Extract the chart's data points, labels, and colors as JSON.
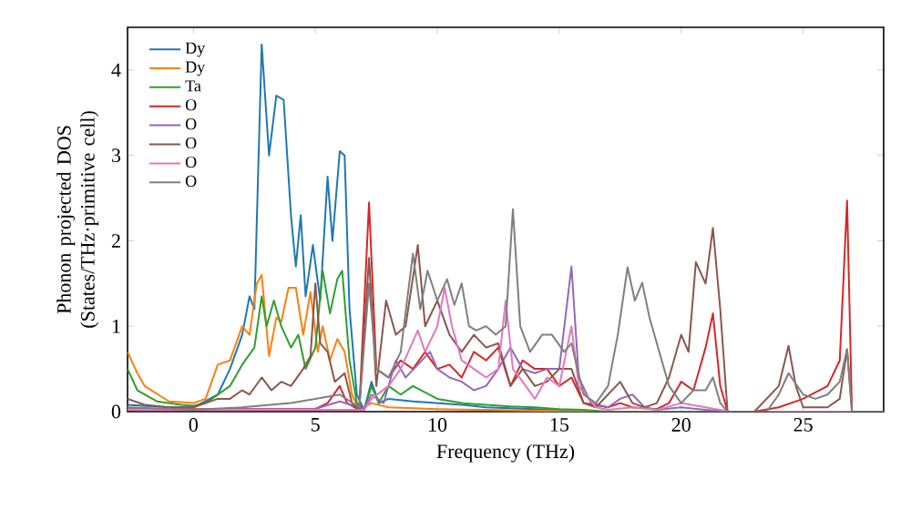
{
  "chart_data": {
    "type": "line",
    "xlabel": "Frequency (THz)",
    "ylabel": "Phonon projected DOS (States/THz·primitive cell)",
    "xlim": [
      -2.7,
      28.3
    ],
    "ylim": [
      0,
      4.5
    ],
    "xticks": [
      0,
      5,
      10,
      15,
      20,
      25
    ],
    "yticks": [
      0,
      1,
      2,
      3,
      4
    ],
    "legend": "top left",
    "series": [
      {
        "name": "Dy",
        "color": "#1f77b4",
        "x": [
          -2.7,
          -1,
          0,
          1,
          1.5,
          2,
          2.3,
          2.5,
          2.8,
          3.1,
          3.4,
          3.7,
          4.0,
          4.2,
          4.4,
          4.6,
          4.9,
          5.2,
          5.5,
          5.7,
          6.0,
          6.2,
          6.4,
          6.7,
          7.0,
          7.3,
          7.6,
          8,
          9,
          10,
          11,
          12,
          13,
          14,
          15,
          16,
          28.3
        ],
        "values": [
          0.08,
          0.05,
          0.05,
          0.2,
          0.5,
          0.9,
          1.35,
          1.2,
          4.3,
          3.0,
          3.7,
          3.65,
          2.3,
          1.7,
          2.3,
          1.35,
          1.95,
          1.3,
          2.75,
          2.0,
          3.05,
          3.0,
          1.2,
          0.2,
          0.02,
          0.35,
          0.1,
          0.15,
          0.12,
          0.1,
          0.08,
          0.05,
          0.04,
          0.03,
          0.02,
          0,
          0
        ]
      },
      {
        "name": "Dy",
        "color": "#ff7f0e",
        "x": [
          -2.7,
          -2.3,
          -2,
          -1,
          0,
          0.5,
          1,
          1.5,
          2,
          2.3,
          2.6,
          2.8,
          3.1,
          3.4,
          3.6,
          3.9,
          4.2,
          4.5,
          4.8,
          5.1,
          5.3,
          5.6,
          5.9,
          6.2,
          6.5,
          6.8,
          7.3,
          8,
          10,
          12,
          14,
          16,
          28.3
        ],
        "values": [
          0.7,
          0.45,
          0.3,
          0.12,
          0.1,
          0.15,
          0.55,
          0.6,
          1.0,
          0.9,
          1.5,
          1.6,
          0.65,
          1.1,
          1.05,
          1.45,
          1.45,
          0.9,
          1.4,
          0.7,
          1.0,
          0.6,
          0.85,
          0.7,
          0.2,
          0.02,
          0.1,
          0.05,
          0.03,
          0.02,
          0.01,
          0,
          0
        ]
      },
      {
        "name": "Ta",
        "color": "#2ca02c",
        "x": [
          -2.7,
          -2.3,
          -1.5,
          -0.5,
          0,
          0.5,
          1,
          1.5,
          2,
          2.5,
          2.8,
          3.0,
          3.3,
          3.6,
          4.0,
          4.3,
          4.6,
          5.0,
          5.3,
          5.6,
          5.9,
          6.1,
          6.4,
          6.7,
          7.0,
          7.3,
          7.6,
          8,
          8.5,
          9,
          10,
          11,
          12,
          13,
          14,
          15,
          16,
          17,
          28.3
        ],
        "values": [
          0.5,
          0.25,
          0.12,
          0.08,
          0.07,
          0.1,
          0.2,
          0.3,
          0.55,
          0.75,
          1.35,
          1.0,
          1.3,
          1.0,
          0.75,
          0.9,
          0.5,
          0.75,
          1.65,
          1.15,
          1.55,
          1.65,
          0.6,
          0.1,
          0.02,
          0.3,
          0.1,
          0.3,
          0.2,
          0.3,
          0.15,
          0.1,
          0.08,
          0.06,
          0.05,
          0.03,
          0.02,
          0,
          0
        ]
      },
      {
        "name": "O",
        "color": "#d62728",
        "x": [
          -2.7,
          5,
          5.5,
          6,
          6.3,
          6.8,
          7.2,
          7.5,
          8,
          8.5,
          9,
          9.5,
          10,
          10.5,
          11,
          11.5,
          12,
          12.5,
          13,
          13.5,
          14,
          14.5,
          15,
          15.5,
          16,
          17,
          17.5,
          18,
          19,
          19.5,
          20,
          20.5,
          21,
          21.3,
          21.6,
          21.9,
          23,
          24,
          25,
          26,
          26.5,
          26.8,
          27.0,
          28.3
        ],
        "values": [
          0.03,
          0.03,
          0.1,
          0.3,
          0.1,
          0.02,
          2.45,
          0.5,
          0.4,
          0.6,
          0.5,
          0.7,
          0.5,
          0.55,
          0.4,
          0.7,
          0.6,
          0.75,
          0.3,
          0.6,
          0.5,
          0.5,
          0.3,
          0.4,
          0.1,
          0.05,
          0.1,
          0.05,
          0.03,
          0.1,
          0.35,
          0.25,
          0.75,
          1.15,
          0.3,
          0,
          0,
          0.05,
          0.15,
          0.3,
          0.6,
          2.47,
          0,
          0
        ]
      },
      {
        "name": "O",
        "color": "#9467bd",
        "x": [
          -2.7,
          5,
          6,
          7,
          7.3,
          7.8,
          8.3,
          8.7,
          9.2,
          9.7,
          10,
          10.5,
          11,
          11.5,
          12,
          12.5,
          13,
          13.5,
          14,
          14.5,
          15,
          15.5,
          15.8,
          16.3,
          17,
          17.5,
          18,
          18.5,
          19,
          20,
          21,
          22,
          28.3
        ],
        "values": [
          0.02,
          0.03,
          0.12,
          0.03,
          0.2,
          0.1,
          0.6,
          0.4,
          0.55,
          0.7,
          0.5,
          0.4,
          0.35,
          0.25,
          0.3,
          0.5,
          0.75,
          0.5,
          0.45,
          0.5,
          0.5,
          1.7,
          0.4,
          0.1,
          0.05,
          0.15,
          0.2,
          0.05,
          0.02,
          0.05,
          0.02,
          0,
          0
        ]
      },
      {
        "name": "O",
        "color": "#8c564b",
        "x": [
          -2.7,
          -2,
          -1,
          0,
          0.5,
          1,
          1.5,
          2,
          2.3,
          2.8,
          3.2,
          3.6,
          4,
          4.5,
          4.8,
          5,
          5.2,
          5.5,
          5.8,
          6.2,
          6.5,
          6.8,
          7.2,
          7.5,
          7.9,
          8.3,
          8.7,
          9.2,
          9.5,
          10,
          10.5,
          11,
          11.5,
          12,
          12.5,
          13,
          13.5,
          14,
          14.5,
          15,
          15.5,
          16,
          16.5,
          17,
          17.5,
          18,
          18.5,
          19,
          19.5,
          20,
          20.3,
          20.6,
          21,
          21.3,
          21.6,
          21.9,
          23,
          24,
          24.4,
          24.7,
          25,
          26,
          26.5,
          26.8,
          27.0,
          28.3
        ],
        "values": [
          0.15,
          0.08,
          0.05,
          0.05,
          0.1,
          0.15,
          0.15,
          0.25,
          0.2,
          0.4,
          0.25,
          0.35,
          0.3,
          0.5,
          0.65,
          1.5,
          0.8,
          0.7,
          0.35,
          0.45,
          0.1,
          0.02,
          1.8,
          0.3,
          1.3,
          0.9,
          1.0,
          1.95,
          1.0,
          1.3,
          0.9,
          0.7,
          0.9,
          0.75,
          0.8,
          0.3,
          0.5,
          0.3,
          0.35,
          0.5,
          0.5,
          0.1,
          0.05,
          0.2,
          0.35,
          0.1,
          0.05,
          0.1,
          0.4,
          0.9,
          0.7,
          1.75,
          1.5,
          2.15,
          1.2,
          0,
          0,
          0.3,
          0.77,
          0.3,
          0.05,
          0.05,
          0.15,
          0.73,
          0,
          0
        ]
      },
      {
        "name": "O",
        "color": "#e377c2",
        "x": [
          -2.7,
          7,
          7.3,
          8,
          8.5,
          9.2,
          9.5,
          10,
          10.3,
          10.6,
          11,
          11.5,
          12,
          12.5,
          12.8,
          13.1,
          13.5,
          14,
          14.5,
          15,
          15.5,
          15.8,
          16.5,
          17,
          18,
          19,
          20,
          21,
          22,
          28.3
        ],
        "values": [
          0.02,
          0.02,
          0.15,
          0.3,
          0.5,
          0.95,
          0.7,
          1.0,
          1.45,
          1.0,
          0.6,
          0.5,
          0.4,
          0.5,
          1.3,
          0.5,
          0.35,
          0.15,
          0.4,
          0.3,
          1.0,
          0.3,
          0.05,
          0.02,
          0.05,
          0.02,
          0.1,
          0.05,
          0,
          0
        ]
      },
      {
        "name": "O",
        "color": "#7f7f7f",
        "x": [
          -2.7,
          0,
          2,
          4,
          5,
          6,
          6.8,
          7.2,
          7.5,
          8,
          8.5,
          9,
          9.3,
          9.6,
          10,
          10.4,
          10.7,
          11,
          11.3,
          11.6,
          12,
          12.4,
          12.8,
          13.1,
          13.4,
          13.8,
          14.3,
          14.7,
          15.2,
          15.5,
          16,
          16.5,
          17,
          17.4,
          17.8,
          18.1,
          18.4,
          18.7,
          19,
          19.5,
          20,
          20.5,
          21,
          21.3,
          21.6,
          21.9,
          23.5,
          24,
          24.4,
          25,
          25.5,
          26,
          26.5,
          26.8,
          27.0,
          28.3
        ],
        "values": [
          0.05,
          0.02,
          0.05,
          0.1,
          0.15,
          0.2,
          0.05,
          1.5,
          0.5,
          0.4,
          0.7,
          1.85,
          1.2,
          1.65,
          1.3,
          1.55,
          1.25,
          1.5,
          1.0,
          0.95,
          1.0,
          0.9,
          1.0,
          2.37,
          1.0,
          0.7,
          0.9,
          0.9,
          0.7,
          0.8,
          0.2,
          0.1,
          0.3,
          0.9,
          1.69,
          1.3,
          1.51,
          1.1,
          0.8,
          0.3,
          0.1,
          0.25,
          0.25,
          0.4,
          0.1,
          0,
          0,
          0.2,
          0.45,
          0.2,
          0.15,
          0.2,
          0.35,
          0.73,
          0,
          0
        ]
      }
    ]
  }
}
